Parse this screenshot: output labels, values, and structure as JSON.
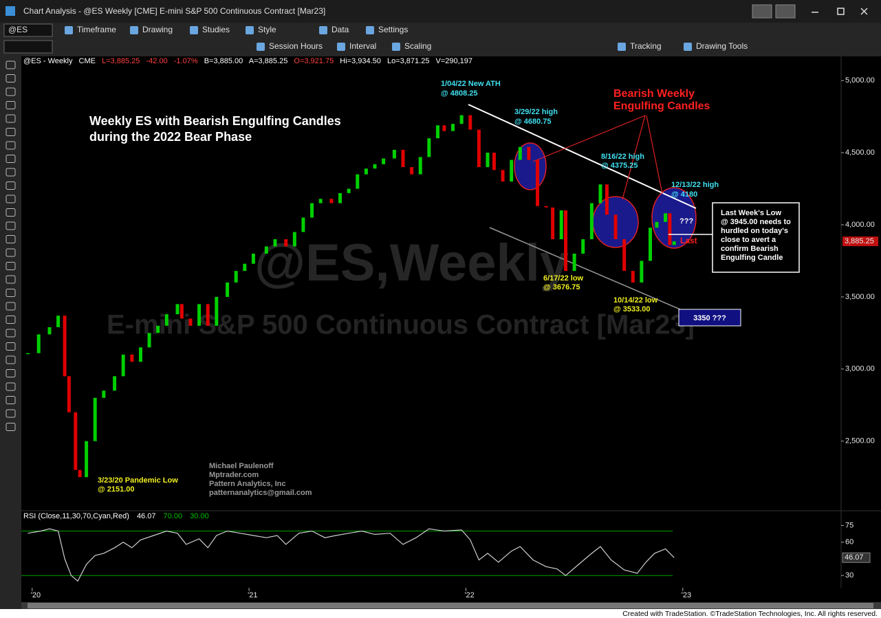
{
  "window": {
    "title": "Chart Analysis - @ES Weekly [CME] E-mini S&P 500 Continuous Contract [Mar23]"
  },
  "toolbar": {
    "symbol": "@ES",
    "row1": [
      "Timeframe",
      "Drawing",
      "Studies",
      "Style",
      "Data",
      "Settings"
    ],
    "row2": [
      "Session Hours",
      "Interval",
      "Scaling",
      "Tracking",
      "Drawing Tools"
    ]
  },
  "legend": [
    "@ES - Weekly",
    "CME",
    "L=3,885.25",
    "-42.00",
    "-1.07%",
    "B=3,885.00",
    "A=3,885.25",
    "O=3,921.75",
    "Hi=3,934.50",
    "Lo=3,871.25",
    "V=290,197"
  ],
  "watermark": [
    "@ES,Weekly",
    "E-mini S&P 500 Continuous Contract [Mar23]"
  ],
  "annotations": {
    "title": [
      "Weekly ES with Bearish Engulfing Candles",
      "during the 2022 Bear Phase"
    ],
    "ath": [
      "1/04/22 New ATH",
      "@ 4808.25"
    ],
    "h0329": [
      "3/29/22 high",
      "@ 4680.75"
    ],
    "h0816": [
      "8/16/22 high",
      "@ 4375.25"
    ],
    "h1213": [
      "12/13/22 high",
      "@ 4180"
    ],
    "bearish": [
      "Bearish Weekly",
      "Engulfing Candles"
    ],
    "l0617": [
      "6/17/22 low",
      "@ 3676.75"
    ],
    "l1014": [
      "10/14/22 low",
      "@ 3533.00"
    ],
    "pandemic": [
      "3/23/20 Pandemic Low",
      "@ 2151.00"
    ],
    "question": "???",
    "last": "Last",
    "target": "3350 ???",
    "note": [
      "Last Week's Low",
      "@ 3945.00 needs to",
      "hurdled on today's",
      "close to avert a",
      "confirm Bearish",
      "Engulfing Candle"
    ],
    "credits": [
      "Michael Paulenoff",
      "Mptrader.com",
      "Pattern Analytics, Inc",
      "patternanalytics@gmail.com"
    ]
  },
  "chart_data": [
    {
      "type": "candle-close",
      "x": [
        2019.98,
        2020.03,
        2020.08,
        2020.12,
        2020.15,
        2020.17,
        2020.2,
        2020.22,
        2020.25,
        2020.29,
        2020.33,
        2020.38,
        2020.42,
        2020.46,
        2020.5,
        2020.54,
        2020.58,
        2020.62,
        2020.67,
        2020.69,
        2020.73,
        2020.77,
        2020.81,
        2020.85,
        2020.9,
        2020.94,
        2020.98,
        2021.02,
        2021.08,
        2021.12,
        2021.17,
        2021.21,
        2021.25,
        2021.29,
        2021.33,
        2021.38,
        2021.42,
        2021.46,
        2021.5,
        2021.54,
        2021.58,
        2021.62,
        2021.67,
        2021.71,
        2021.75,
        2021.79,
        2021.83,
        2021.87,
        2021.9,
        2021.94,
        2021.98,
        2022.02,
        2022.06,
        2022.1,
        2022.13,
        2022.17,
        2022.21,
        2022.25,
        2022.29,
        2022.33,
        2022.37,
        2022.4,
        2022.44,
        2022.46,
        2022.5,
        2022.54,
        2022.58,
        2022.62,
        2022.65,
        2022.69,
        2022.73,
        2022.77,
        2022.81,
        2022.85,
        2022.88,
        2022.92,
        2022.94,
        2022.96
      ],
      "values": [
        3110,
        3240,
        3290,
        3370,
        2950,
        2700,
        2300,
        2250,
        2500,
        2800,
        2850,
        2950,
        3100,
        3050,
        3150,
        3250,
        3300,
        3380,
        3450,
        3350,
        3300,
        3450,
        3300,
        3500,
        3600,
        3680,
        3730,
        3800,
        3850,
        3900,
        3850,
        3950,
        4050,
        4150,
        4180,
        4150,
        4220,
        4250,
        4350,
        4390,
        4420,
        4460,
        4520,
        4400,
        4350,
        4470,
        4600,
        4690,
        4650,
        4700,
        4760,
        4660,
        4400,
        4500,
        4380,
        4300,
        4450,
        4540,
        4450,
        4130,
        4120,
        3900,
        4100,
        3680,
        3800,
        3900,
        4150,
        4280,
        4070,
        3900,
        3680,
        3600,
        3750,
        3980,
        4020,
        4080,
        3860,
        3885.25
      ],
      "up_color": "#00d000",
      "down_color": "#e00000",
      "xlim": [
        2019.95,
        2023.73
      ],
      "ylim": [
        2017,
        5168
      ],
      "xticks": [
        {
          "value": 2020,
          "label": "'20"
        },
        {
          "value": 2021,
          "label": "'21"
        },
        {
          "value": 2022,
          "label": "'22"
        },
        {
          "value": 2023,
          "label": "'23"
        }
      ],
      "yticks": [
        {
          "value": 2500,
          "label": "2,500.00"
        },
        {
          "value": 3000,
          "label": "3,000.00"
        },
        {
          "value": 3500,
          "label": "3,500.00"
        },
        {
          "value": 4000,
          "label": "4,000.00"
        },
        {
          "value": 4500,
          "label": "4,500.00"
        },
        {
          "value": 5000,
          "label": "5,000.00"
        }
      ],
      "last_value": {
        "value": 3885.25,
        "label": "3,885.25"
      }
    },
    {
      "type": "line",
      "header": [
        "RSI (Close,11,30,70,Cyan,Red)",
        "46.07",
        "70.00",
        "30.00"
      ],
      "x": [
        2019.98,
        2020.04,
        2020.08,
        2020.12,
        2020.15,
        2020.18,
        2020.21,
        2020.25,
        2020.29,
        2020.33,
        2020.38,
        2020.42,
        2020.46,
        2020.5,
        2020.56,
        2020.62,
        2020.67,
        2020.71,
        2020.77,
        2020.81,
        2020.85,
        2020.9,
        2020.96,
        2021.02,
        2021.08,
        2021.13,
        2021.17,
        2021.23,
        2021.29,
        2021.35,
        2021.4,
        2021.46,
        2021.52,
        2021.58,
        2021.65,
        2021.71,
        2021.77,
        2021.83,
        2021.9,
        2021.98,
        2022.02,
        2022.06,
        2022.1,
        2022.15,
        2022.21,
        2022.25,
        2022.31,
        2022.37,
        2022.42,
        2022.46,
        2022.52,
        2022.58,
        2022.62,
        2022.67,
        2022.73,
        2022.79,
        2022.83,
        2022.87,
        2022.92,
        2022.96
      ],
      "values": [
        68,
        70,
        72,
        70,
        45,
        30,
        25,
        40,
        48,
        50,
        55,
        60,
        55,
        62,
        66,
        70,
        68,
        58,
        63,
        55,
        66,
        70,
        68,
        66,
        64,
        66,
        58,
        68,
        70,
        64,
        66,
        68,
        70,
        67,
        68,
        58,
        64,
        72,
        70,
        71,
        62,
        44,
        50,
        42,
        52,
        56,
        44,
        38,
        36,
        30,
        40,
        50,
        56,
        44,
        35,
        32,
        42,
        50,
        54,
        46.07
      ],
      "color": "#d0d0d0",
      "levels": [
        70,
        30
      ],
      "level_color": "#00a000",
      "xlim": [
        2019.95,
        2023.73
      ],
      "ylim": [
        19,
        87
      ],
      "yticks": [
        30,
        60,
        75
      ],
      "last_value": {
        "value": 46.07,
        "label": "46.07"
      }
    }
  ],
  "footer": "Created with TradeStation. ©TradeStation Technologies, Inc. All rights reserved."
}
